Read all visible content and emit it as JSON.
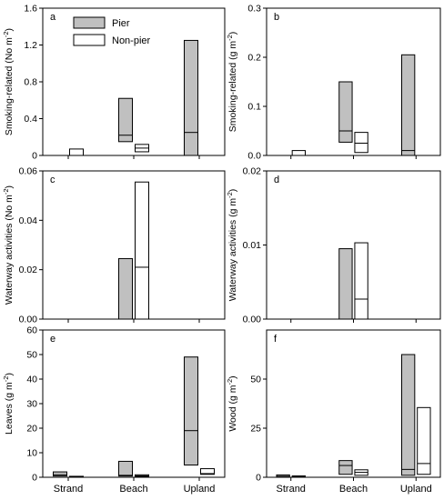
{
  "chart_data": [
    {
      "panel": "a",
      "type": "box",
      "ylabel": "Smoking-related (No m",
      "ylabel_sup": "-2",
      "ylabel_end": ")",
      "ylim": [
        0,
        1.6
      ],
      "yticks": [
        0,
        0.4,
        0.8,
        1.2,
        1.6
      ],
      "ytick_labels": [
        "0",
        "0.4",
        "0.8",
        "1.2",
        "1.6"
      ],
      "show_categories": false,
      "boxes": [
        {
          "category": "Strand",
          "series": "Pier",
          "low": 0,
          "median": 0,
          "high": 0
        },
        {
          "category": "Strand",
          "series": "Non-pier",
          "low": 0,
          "median": 0,
          "high": 0.07
        },
        {
          "category": "Beach",
          "series": "Pier",
          "low": 0.15,
          "median": 0.22,
          "high": 0.62
        },
        {
          "category": "Beach",
          "series": "Non-pier",
          "low": 0.04,
          "median": 0.08,
          "high": 0.12
        },
        {
          "category": "Upland",
          "series": "Pier",
          "low": 0,
          "median": 0.25,
          "high": 1.25
        },
        {
          "category": "Upland",
          "series": "Non-pier",
          "low": 0,
          "median": 0,
          "high": 0
        }
      ]
    },
    {
      "panel": "b",
      "type": "box",
      "ylabel": "Smoking-related (g m",
      "ylabel_sup": "-2",
      "ylabel_end": ")",
      "ylim": [
        0,
        0.3
      ],
      "yticks": [
        0,
        0.1,
        0.2,
        0.3
      ],
      "ytick_labels": [
        "0.0",
        "0.1",
        "0.2",
        "0.3"
      ],
      "show_categories": false,
      "boxes": [
        {
          "category": "Strand",
          "series": "Pier",
          "low": 0,
          "median": 0,
          "high": 0
        },
        {
          "category": "Strand",
          "series": "Non-pier",
          "low": 0,
          "median": 0,
          "high": 0.01
        },
        {
          "category": "Beach",
          "series": "Pier",
          "low": 0.027,
          "median": 0.05,
          "high": 0.15
        },
        {
          "category": "Beach",
          "series": "Non-pier",
          "low": 0.006,
          "median": 0.025,
          "high": 0.047
        },
        {
          "category": "Upland",
          "series": "Pier",
          "low": 0,
          "median": 0.01,
          "high": 0.205
        },
        {
          "category": "Upland",
          "series": "Non-pier",
          "low": 0,
          "median": 0,
          "high": 0
        }
      ]
    },
    {
      "panel": "c",
      "type": "box",
      "ylabel": "Waterway activities (No m",
      "ylabel_sup": "-2",
      "ylabel_end": ")",
      "ylim": [
        0,
        0.06
      ],
      "yticks": [
        0,
        0.02,
        0.04,
        0.06
      ],
      "ytick_labels": [
        "0.00",
        "0.02",
        "0.04",
        "0.06"
      ],
      "show_categories": false,
      "boxes": [
        {
          "category": "Strand",
          "series": "Pier",
          "low": 0,
          "median": 0,
          "high": 0
        },
        {
          "category": "Strand",
          "series": "Non-pier",
          "low": 0,
          "median": 0,
          "high": 0
        },
        {
          "category": "Beach",
          "series": "Pier",
          "low": 0,
          "median": 0,
          "high": 0.0245
        },
        {
          "category": "Beach",
          "series": "Non-pier",
          "low": 0,
          "median": 0.021,
          "high": 0.0555
        },
        {
          "category": "Upland",
          "series": "Pier",
          "low": 0,
          "median": 0,
          "high": 0
        },
        {
          "category": "Upland",
          "series": "Non-pier",
          "low": 0,
          "median": 0,
          "high": 0
        }
      ]
    },
    {
      "panel": "d",
      "type": "box",
      "ylabel": "Waterway activities (g m",
      "ylabel_sup": "-2",
      "ylabel_end": ")",
      "ylim": [
        0,
        0.02
      ],
      "yticks": [
        0,
        0.01,
        0.02
      ],
      "ytick_labels": [
        "0.00",
        "0.01",
        "0.02"
      ],
      "show_categories": false,
      "boxes": [
        {
          "category": "Strand",
          "series": "Pier",
          "low": 0,
          "median": 0,
          "high": 0
        },
        {
          "category": "Strand",
          "series": "Non-pier",
          "low": 0,
          "median": 0,
          "high": 0
        },
        {
          "category": "Beach",
          "series": "Pier",
          "low": 0,
          "median": 0,
          "high": 0.0095
        },
        {
          "category": "Beach",
          "series": "Non-pier",
          "low": 0,
          "median": 0.0027,
          "high": 0.0103
        },
        {
          "category": "Upland",
          "series": "Pier",
          "low": 0,
          "median": 0,
          "high": 0
        },
        {
          "category": "Upland",
          "series": "Non-pier",
          "low": 0,
          "median": 0,
          "high": 0
        }
      ]
    },
    {
      "panel": "e",
      "type": "box",
      "ylabel": "Leaves (g m",
      "ylabel_sup": "-2",
      "ylabel_end": ")",
      "ylim": [
        0,
        60
      ],
      "yticks": [
        0,
        10,
        20,
        30,
        40,
        50,
        60
      ],
      "ytick_labels": [
        "0",
        "10",
        "20",
        "30",
        "40",
        "50",
        "60"
      ],
      "show_categories": true,
      "boxes": [
        {
          "category": "Strand",
          "series": "Pier",
          "low": 0.5,
          "median": 1,
          "high": 2.2
        },
        {
          "category": "Strand",
          "series": "Non-pier",
          "low": 0.1,
          "median": 0.2,
          "high": 0.4
        },
        {
          "category": "Beach",
          "series": "Pier",
          "low": 0.5,
          "median": 0.8,
          "high": 6.5
        },
        {
          "category": "Beach",
          "series": "Non-pier",
          "low": 0.3,
          "median": 0.6,
          "high": 1.0
        },
        {
          "category": "Upland",
          "series": "Pier",
          "low": 5,
          "median": 19,
          "high": 49
        },
        {
          "category": "Upland",
          "series": "Non-pier",
          "low": 1.2,
          "median": 1.5,
          "high": 3.5
        }
      ]
    },
    {
      "panel": "f",
      "type": "box",
      "ylabel": "Wood (g m",
      "ylabel_sup": "-2",
      "ylabel_end": ")",
      "ylim": [
        0,
        75
      ],
      "yticks": [
        0,
        25,
        50
      ],
      "ytick_labels": [
        "0",
        "25",
        "50"
      ],
      "show_categories": true,
      "boxes": [
        {
          "category": "Strand",
          "series": "Pier",
          "low": 0,
          "median": 0.5,
          "high": 1.2
        },
        {
          "category": "Strand",
          "series": "Non-pier",
          "low": 0,
          "median": 0.3,
          "high": 0.7
        },
        {
          "category": "Beach",
          "series": "Pier",
          "low": 1.5,
          "median": 6,
          "high": 8.5
        },
        {
          "category": "Beach",
          "series": "Non-pier",
          "low": 1,
          "median": 2.5,
          "high": 3.8
        },
        {
          "category": "Upland",
          "series": "Pier",
          "low": 1,
          "median": 4,
          "high": 62.5
        },
        {
          "category": "Upland",
          "series": "Non-pier",
          "low": 1.5,
          "median": 7,
          "high": 35.5
        }
      ]
    }
  ],
  "categories": [
    "Strand",
    "Beach",
    "Upland"
  ],
  "legend": {
    "items": [
      {
        "label": "Pier",
        "fill": "#c0c0c0"
      },
      {
        "label": "Non-pier",
        "fill": "#ffffff"
      }
    ],
    "placement": "top-center of panel a"
  },
  "colors": {
    "pier_fill": "#c0c0c0",
    "nonpier_fill": "#ffffff",
    "stroke": "#000000"
  }
}
